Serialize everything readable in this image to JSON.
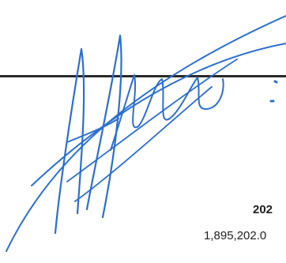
{
  "document": {
    "signature_stroke_color": "#2b6fd1",
    "signature_line_color": "#2a2a2a",
    "year_label": "202",
    "amount_value": "1,895,202.0"
  }
}
